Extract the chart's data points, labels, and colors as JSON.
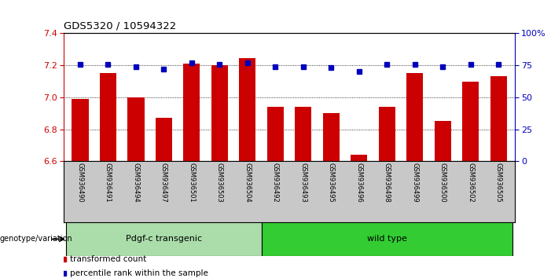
{
  "title": "GDS5320 / 10594322",
  "samples": [
    "GSM936490",
    "GSM936491",
    "GSM936494",
    "GSM936497",
    "GSM936501",
    "GSM936503",
    "GSM936504",
    "GSM936492",
    "GSM936493",
    "GSM936495",
    "GSM936496",
    "GSM936498",
    "GSM936499",
    "GSM936500",
    "GSM936502",
    "GSM936505"
  ],
  "bar_values": [
    6.99,
    7.15,
    7.0,
    6.87,
    7.21,
    7.2,
    7.245,
    6.94,
    6.94,
    6.9,
    6.64,
    6.94,
    7.15,
    6.85,
    7.1,
    7.13
  ],
  "dot_values": [
    76,
    76,
    74,
    72,
    77,
    76,
    77,
    74,
    74,
    73,
    70,
    76,
    76,
    74,
    76,
    76
  ],
  "ylim_left": [
    6.6,
    7.4
  ],
  "ylim_right": [
    0,
    100
  ],
  "yticks_left": [
    6.6,
    6.8,
    7.0,
    7.2,
    7.4
  ],
  "yticks_right": [
    0,
    25,
    50,
    75,
    100
  ],
  "bar_color": "#cc0000",
  "dot_color": "#0000bb",
  "group1_color": "#aaddaa",
  "group2_color": "#33cc33",
  "bg_color": "#c8c8c8",
  "xlabel_group": "genotype/variation",
  "legend_bar": "transformed count",
  "legend_dot": "percentile rank within the sample",
  "group_labels": [
    "Pdgf-c transgenic",
    "wild type"
  ],
  "n_group1": 7,
  "n_group2": 9
}
